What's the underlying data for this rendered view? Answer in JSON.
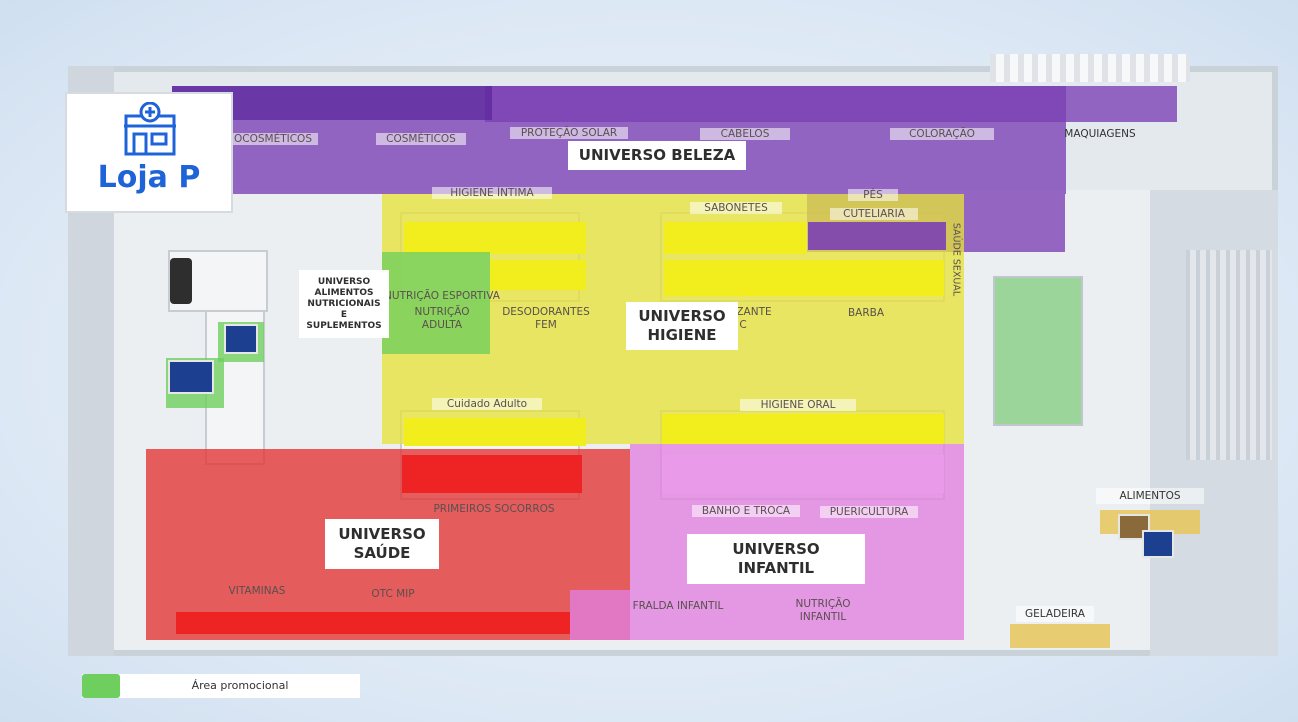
{
  "store": {
    "name": "Loja P"
  },
  "legend": {
    "label": "Área promocional"
  },
  "colors": {
    "beleza": "#7b3fb5",
    "higiene": "#e6e23a",
    "higiene_bar": "#f2ee1e",
    "saude": "#e23232",
    "saude_bar": "#ee2323",
    "infantil": "#e27fe0",
    "promo": "#6fcf5e",
    "ambient": "#e6c65a"
  },
  "universes": {
    "beleza": "UNIVERSO BELEZA",
    "higiene_1": "UNIVERSO",
    "higiene_2": "HIGIENE",
    "saude_1": "UNIVERSO",
    "saude_2": "SAÚDE",
    "infantil_1": "UNIVERSO",
    "infantil_2": "INFANTIL",
    "alimentos_1": "UNIVERSO",
    "alimentos_2": "ALIMENTOS",
    "alimentos_3": "NUTRICIONAIS",
    "alimentos_4": "E",
    "alimentos_5": "SUPLEMENTOS"
  },
  "categories": {
    "dermocosmeticos": "OCOSMÉTICOS",
    "cosmeticos": "COSMÉTICOS",
    "protecao_solar": "PROTEÇÃO SOLAR",
    "cabelos": "CABELOS",
    "coloracao": "COLORAÇÃO",
    "maquiagens": "MAQUIAGENS",
    "higiene_intima": "HIGIENE ÍNTIMA",
    "sabonetes": "SABONETES",
    "pes": "PÉS",
    "cutelaria": "CUTELIARIA",
    "saude_sexual": "SAÚDE SEXUAL",
    "nutricao_esportiva": "NUTRIÇÃO ESPORTIVA",
    "nutricao_adulta_1": "NUTRIÇÃO",
    "nutricao_adulta_2": "ADULTA",
    "desodorantes_1": "DESODORANTES",
    "desodorantes_2": "FEM",
    "zante": "ZANTE",
    "c": "C",
    "barba": "BARBA",
    "cuidado_adulto": "Cuidado Adulto",
    "higiene_oral": "HIGIENE ORAL",
    "primeiros_socorros": "PRIMEIROS SOCORROS",
    "banho_troca": "BANHO E TROCA",
    "puericultura": "PUERICULTURA",
    "vitaminas": "VITAMINAS",
    "otc_mip": "OTC MIP",
    "fralda_infantil": "FRALDA INFANTIL",
    "nutricao_infantil_1": "NUTRIÇÃO",
    "nutricao_infantil_2": "INFANTIL",
    "alimentos": "ALIMENTOS",
    "geladeira": "GELADEIRA"
  }
}
